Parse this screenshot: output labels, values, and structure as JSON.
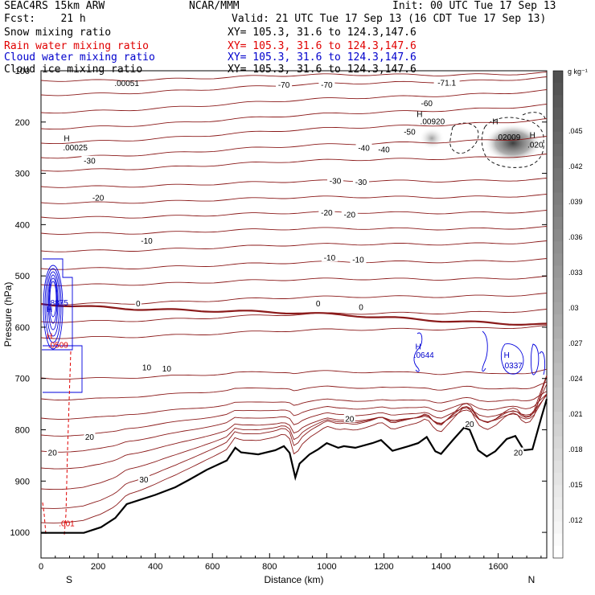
{
  "header": {
    "model": "SEAC4RS 15km ARW",
    "forecast": "Fcst:    21 h",
    "center": "NCAR/MMM",
    "init": "Init: 00 UTC Tue 17 Sep 13",
    "valid": "Valid: 21 UTC Tue 17 Sep 13 (16 CDT Tue 17 Sep 13)",
    "fields": [
      {
        "label": "Snow mixing ratio",
        "xy": "XY= 105.3, 31.6 to 124.3,147.6",
        "color": "#000000"
      },
      {
        "label": "Rain water mixing ratio",
        "xy": "XY= 105.3, 31.6 to 124.3,147.6",
        "color": "#e00000"
      },
      {
        "label": "Cloud water mixing ratio",
        "xy": "XY= 105.3, 31.6 to 124.3,147.6",
        "color": "#0000cc"
      },
      {
        "label": "Cloud ice mixing ratio",
        "xy": "XY= 105.3, 31.6 to 124.3,147.6",
        "color": "#000000"
      }
    ]
  },
  "colorbar": {
    "unit": "g kg⁻¹",
    "ticks": [
      ".045",
      ".042",
      ".039",
      ".036",
      ".033",
      ".03",
      ".027",
      ".024",
      ".021",
      ".018",
      ".015",
      ".012"
    ]
  },
  "chart_data": {
    "type": "contour-cross-section",
    "xlabel": "Distance (km)",
    "ylabel": "Pressure (hPa)",
    "xlim": [
      0,
      1770
    ],
    "ylim": [
      1050,
      100
    ],
    "x_ticks": [
      "0",
      "200",
      "400",
      "600",
      "800",
      "1000",
      "1200",
      "1400",
      "1600"
    ],
    "y_ticks": [
      "100",
      "200",
      "300",
      "400",
      "500",
      "600",
      "700",
      "800",
      "900",
      "1000"
    ],
    "endpoint_labels": {
      "left": "S",
      "right": "N"
    },
    "temperature_labels": [
      {
        "text": "-71.1",
        "x": 1420,
        "p": 123
      },
      {
        "text": "-70",
        "x": 1000,
        "p": 127
      },
      {
        "text": "-70",
        "x": 850,
        "p": 127
      },
      {
        "text": "-60",
        "x": 1350,
        "p": 163
      },
      {
        "text": "-50",
        "x": 1290,
        "p": 218
      },
      {
        "text": "-40",
        "x": 1130,
        "p": 250
      },
      {
        "text": "-40",
        "x": 1200,
        "p": 253
      },
      {
        "text": "-30",
        "x": 170,
        "p": 275
      },
      {
        "text": "-30",
        "x": 1030,
        "p": 314
      },
      {
        "text": "-30",
        "x": 1120,
        "p": 316
      },
      {
        "text": "-20",
        "x": 200,
        "p": 347
      },
      {
        "text": "-20",
        "x": 1000,
        "p": 376
      },
      {
        "text": "-20",
        "x": 1080,
        "p": 380
      },
      {
        "text": "-10",
        "x": 370,
        "p": 431
      },
      {
        "text": "-10",
        "x": 1010,
        "p": 464
      },
      {
        "text": "-10",
        "x": 1110,
        "p": 468
      },
      {
        "text": "0",
        "x": 340,
        "p": 553
      },
      {
        "text": "0",
        "x": 970,
        "p": 553
      },
      {
        "text": "0",
        "x": 1120,
        "p": 560
      },
      {
        "text": "10",
        "x": 370,
        "p": 678
      },
      {
        "text": "10",
        "x": 440,
        "p": 680
      },
      {
        "text": "20",
        "x": 1080,
        "p": 778
      },
      {
        "text": "20",
        "x": 1500,
        "p": 788
      },
      {
        "text": "20",
        "x": 170,
        "p": 813
      },
      {
        "text": "20",
        "x": 40,
        "p": 844
      },
      {
        "text": "20",
        "x": 1670,
        "p": 844
      },
      {
        "text": "30",
        "x": 360,
        "p": 896
      }
    ],
    "value_labels": [
      {
        "text": ".00051",
        "x": 300,
        "p": 130,
        "color": "#000000"
      },
      {
        "text": "H",
        "x": 90,
        "p": 237,
        "color": "#000000"
      },
      {
        "text": ".00025",
        "x": 120,
        "p": 255,
        "color": "#000000"
      },
      {
        "text": "H",
        "x": 1325,
        "p": 190,
        "color": "#000000"
      },
      {
        "text": ".00920",
        "x": 1370,
        "p": 204,
        "color": "#000000"
      },
      {
        "text": "H",
        "x": 1590,
        "p": 204,
        "color": "#000000"
      },
      {
        "text": ".02009",
        "x": 1635,
        "p": 235,
        "color": "#000000"
      },
      {
        "text": "H",
        "x": 1720,
        "p": 231,
        "color": "#000000"
      },
      {
        "text": ".020",
        "x": 1730,
        "p": 250,
        "color": "#000000"
      },
      {
        "text": "H",
        "x": 30,
        "p": 570,
        "color": "#0000cc"
      },
      {
        "text": ".8875",
        "x": 60,
        "p": 558,
        "color": "#0000cc"
      },
      {
        "text": "H",
        "x": 30,
        "p": 623,
        "color": "#e00000"
      },
      {
        "text": ".0509",
        "x": 60,
        "p": 640,
        "color": "#e00000"
      },
      {
        "text": "H",
        "x": 1320,
        "p": 643,
        "color": "#0000cc"
      },
      {
        "text": ".0644",
        "x": 1340,
        "p": 660,
        "color": "#0000cc"
      },
      {
        "text": "H",
        "x": 1630,
        "p": 660,
        "color": "#0000cc"
      },
      {
        "text": ".0337",
        "x": 1650,
        "p": 680,
        "color": "#0000cc"
      },
      {
        "text": ".001",
        "x": 90,
        "p": 988,
        "color": "#e00000"
      }
    ],
    "terrain": [
      [
        0,
        1001
      ],
      [
        150,
        1001
      ],
      [
        210,
        990
      ],
      [
        260,
        972
      ],
      [
        300,
        945
      ],
      [
        400,
        927
      ],
      [
        470,
        912
      ],
      [
        520,
        897
      ],
      [
        580,
        878
      ],
      [
        650,
        860
      ],
      [
        680,
        835
      ],
      [
        700,
        844
      ],
      [
        760,
        848
      ],
      [
        820,
        840
      ],
      [
        850,
        832
      ],
      [
        870,
        845
      ],
      [
        890,
        893
      ],
      [
        905,
        866
      ],
      [
        940,
        848
      ],
      [
        970,
        838
      ],
      [
        1000,
        826
      ],
      [
        1040,
        835
      ],
      [
        1060,
        832
      ],
      [
        1100,
        835
      ],
      [
        1160,
        826
      ],
      [
        1190,
        820
      ],
      [
        1230,
        841
      ],
      [
        1280,
        833
      ],
      [
        1320,
        826
      ],
      [
        1350,
        814
      ],
      [
        1380,
        842
      ],
      [
        1400,
        847
      ],
      [
        1440,
        821
      ],
      [
        1480,
        796
      ],
      [
        1500,
        800
      ],
      [
        1530,
        840
      ],
      [
        1560,
        852
      ],
      [
        1590,
        842
      ],
      [
        1630,
        818
      ],
      [
        1660,
        812
      ],
      [
        1690,
        840
      ],
      [
        1720,
        838
      ],
      [
        1750,
        778
      ],
      [
        1770,
        740
      ]
    ],
    "snow_max": 0.02009,
    "cloud_water_max": 0.8875,
    "rain_max": 0.0509
  }
}
